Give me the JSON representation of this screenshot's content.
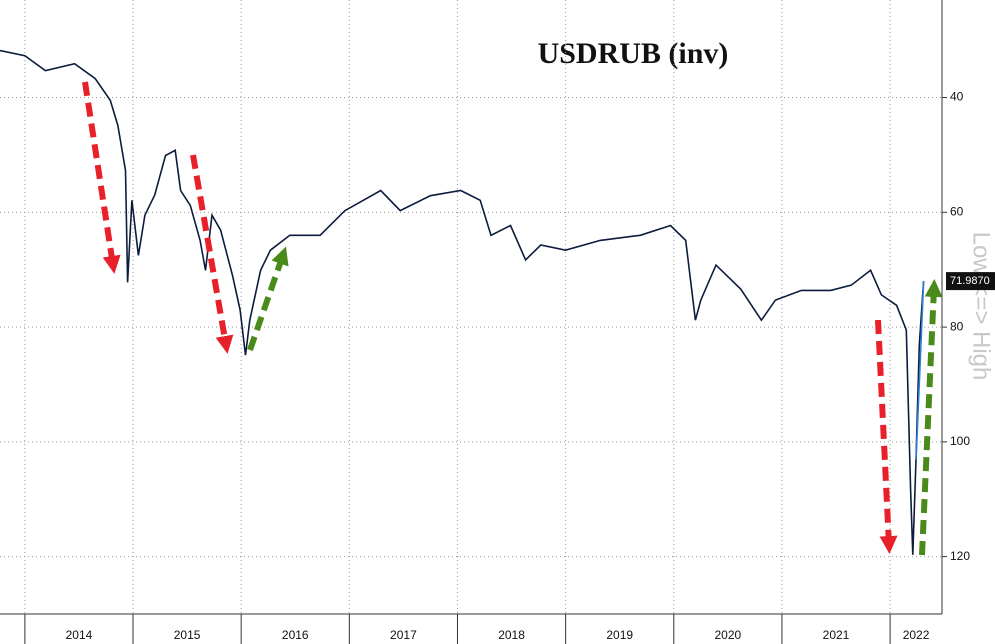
{
  "chart_data": {
    "type": "line",
    "title": "USDRUB (inv)",
    "y_axis_label": "Low <=> High",
    "x": [
      2013.77,
      2014.0,
      2014.19,
      2014.46,
      2014.65,
      2014.79,
      2014.86,
      2014.93,
      2014.95,
      2014.99,
      2015.05,
      2015.11,
      2015.2,
      2015.3,
      2015.39,
      2015.44,
      2015.53,
      2015.62,
      2015.67,
      2015.73,
      2015.81,
      2015.92,
      2015.99,
      2016.04,
      2016.08,
      2016.18,
      2016.27,
      2016.45,
      2016.73,
      2016.96,
      2017.29,
      2017.47,
      2017.75,
      2018.03,
      2018.21,
      2018.31,
      2018.49,
      2018.63,
      2018.77,
      2019.0,
      2019.32,
      2019.69,
      2019.97,
      2020.11,
      2020.2,
      2020.25,
      2020.39,
      2020.62,
      2020.81,
      2020.94,
      2021.18,
      2021.45,
      2021.64,
      2021.82,
      2021.92,
      2022.06,
      2022.15,
      2022.19,
      2022.21,
      2022.24,
      2022.27,
      2022.31
    ],
    "values": [
      31.8,
      32.7,
      35.3,
      34.1,
      36.7,
      40.5,
      44.9,
      52.7,
      72.2,
      57.9,
      67.5,
      60.5,
      57.0,
      50.1,
      49.2,
      56.2,
      58.8,
      64.9,
      70.1,
      60.5,
      63.1,
      71.0,
      77.0,
      84.9,
      78.8,
      70.1,
      66.6,
      64.0,
      64.0,
      59.7,
      56.2,
      59.7,
      57.1,
      56.2,
      57.9,
      64.0,
      62.3,
      68.3,
      65.7,
      66.6,
      64.9,
      64.0,
      62.3,
      64.9,
      78.8,
      75.3,
      69.2,
      73.4,
      78.8,
      75.3,
      73.6,
      73.6,
      72.7,
      70.1,
      74.4,
      76.2,
      80.5,
      108.3,
      119.7,
      103.1,
      83.1,
      71.987
    ],
    "last_value_label": "71.9870",
    "color": "#0b1c3d",
    "highlight_color": "#2a7fd4",
    "xlim": [
      2013.77,
      2022.48
    ],
    "xticks": [
      2014,
      2015,
      2016,
      2017,
      2018,
      2019,
      2020,
      2021,
      2022
    ],
    "ylim": [
      23,
      130
    ],
    "yticks": [
      40,
      60,
      80,
      100,
      120
    ],
    "y_inverted": true,
    "y_axis_side": "right",
    "grid": true
  }
}
